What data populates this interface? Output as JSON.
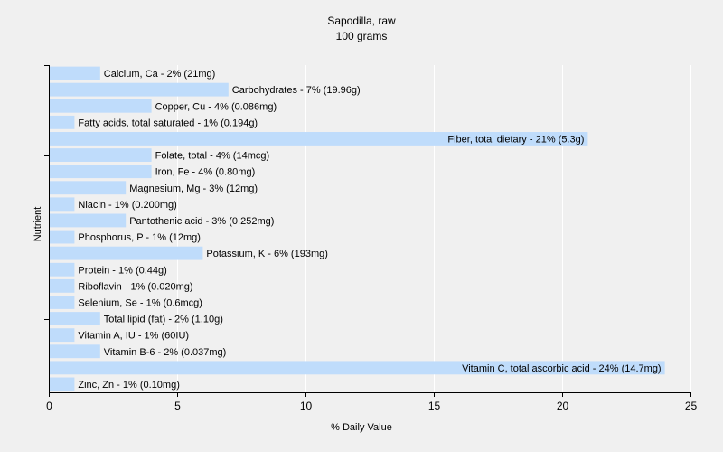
{
  "chart_data": {
    "type": "bar",
    "orientation": "horizontal",
    "title": "Sapodilla, raw",
    "subtitle": "100 grams",
    "xlabel": "% Daily Value",
    "ylabel": "Nutrient",
    "xlim": [
      0,
      25
    ],
    "xticks": [
      0,
      5,
      10,
      15,
      20,
      25
    ],
    "grid": "vertical",
    "legend": "none",
    "bar_color": "#bfdcfb",
    "categories": [
      "Calcium, Ca",
      "Carbohydrates",
      "Copper, Cu",
      "Fatty acids, total saturated",
      "Fiber, total dietary",
      "Folate, total",
      "Iron, Fe",
      "Magnesium, Mg",
      "Niacin",
      "Pantothenic acid",
      "Phosphorus, P",
      "Potassium, K",
      "Protein",
      "Riboflavin",
      "Selenium, Se",
      "Total lipid (fat)",
      "Vitamin A, IU",
      "Vitamin B-6",
      "Vitamin C, total ascorbic acid",
      "Zinc, Zn"
    ],
    "values": [
      2,
      7,
      4,
      1,
      21,
      4,
      4,
      3,
      1,
      3,
      1,
      6,
      1,
      1,
      1,
      2,
      1,
      2,
      24,
      1
    ],
    "labels": [
      "Calcium, Ca - 2% (21mg)",
      "Carbohydrates - 7% (19.96g)",
      "Copper, Cu - 4% (0.086mg)",
      "Fatty acids, total saturated - 1% (0.194g)",
      "Fiber, total dietary - 21% (5.3g)",
      "Folate, total - 4% (14mcg)",
      "Iron, Fe - 4% (0.80mg)",
      "Magnesium, Mg - 3% (12mg)",
      "Niacin - 1% (0.200mg)",
      "Pantothenic acid - 3% (0.252mg)",
      "Phosphorus, P - 1% (12mg)",
      "Potassium, K - 6% (193mg)",
      "Protein - 1% (0.44g)",
      "Riboflavin - 1% (0.020mg)",
      "Selenium, Se - 1% (0.6mcg)",
      "Total lipid (fat) - 2% (1.10g)",
      "Vitamin A, IU - 1% (60IU)",
      "Vitamin B-6 - 2% (0.037mg)",
      "Vitamin C, total ascorbic acid - 24% (14.7mg)",
      "Zinc, Zn - 1% (0.10mg)"
    ]
  }
}
